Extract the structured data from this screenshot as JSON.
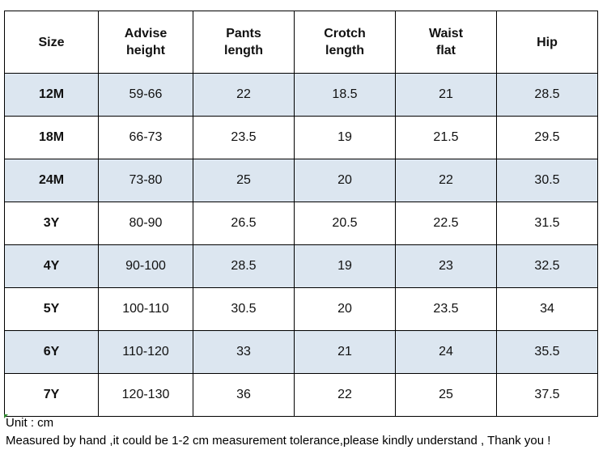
{
  "table": {
    "header": [
      "Size",
      "Advise\nheight",
      "Pants\nlength",
      "Crotch\nlength",
      "Waist\nflat",
      "Hip"
    ],
    "rows": [
      [
        "12M",
        "59-66",
        "22",
        "18.5",
        "21",
        "28.5"
      ],
      [
        "18M",
        "66-73",
        "23.5",
        "19",
        "21.5",
        "29.5"
      ],
      [
        "24M",
        "73-80",
        "25",
        "20",
        "22",
        "30.5"
      ],
      [
        "3Y",
        "80-90",
        "26.5",
        "20.5",
        "22.5",
        "31.5"
      ],
      [
        "4Y",
        "90-100",
        "28.5",
        "19",
        "23",
        "32.5"
      ],
      [
        "5Y",
        "100-110",
        "30.5",
        "20",
        "23.5",
        "34"
      ],
      [
        "6Y",
        "110-120",
        "33",
        "21",
        "24",
        "35.5"
      ],
      [
        "7Y",
        "120-130",
        "36",
        "22",
        "25",
        "37.5"
      ]
    ]
  },
  "notes": [
    "Unit : cm",
    "Measured by hand ,it could be 1-2 cm measurement tolerance,please kindly understand , Thank you !"
  ]
}
